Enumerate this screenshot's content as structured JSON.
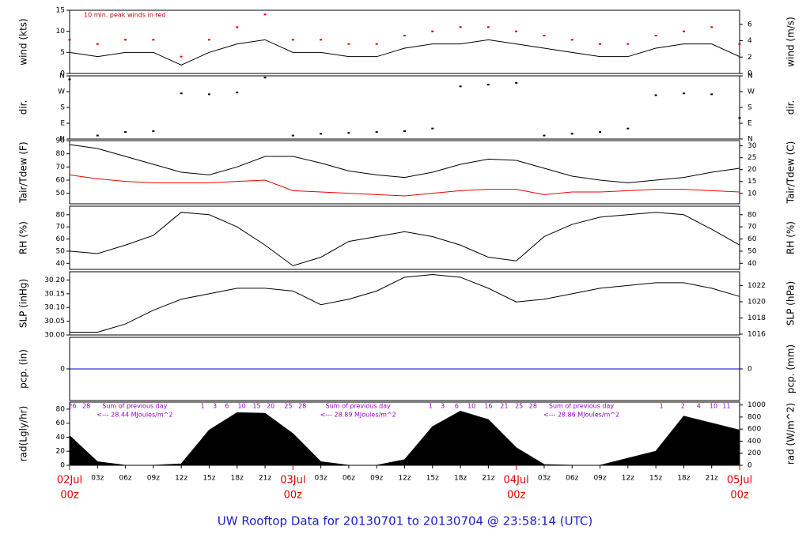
{
  "figure": {
    "title": "UW Rooftop Data for 20130701  to  20130704 @ 23:58:14  (UTC)",
    "x": [
      0,
      3,
      6,
      9,
      12,
      15,
      18,
      21,
      24,
      27,
      30,
      33,
      36,
      39,
      42,
      45,
      48,
      51,
      54,
      57,
      60,
      63,
      66,
      69,
      72
    ],
    "xlim": [
      0,
      72
    ],
    "xticks": [
      {
        "value": 3,
        "label": "03z"
      },
      {
        "value": 6,
        "label": "06z"
      },
      {
        "value": 9,
        "label": "09z"
      },
      {
        "value": 12,
        "label": "12z"
      },
      {
        "value": 15,
        "label": "15z"
      },
      {
        "value": 18,
        "label": "18z"
      },
      {
        "value": 21,
        "label": "21z"
      },
      {
        "value": 27,
        "label": "03z"
      },
      {
        "value": 30,
        "label": "06z"
      },
      {
        "value": 33,
        "label": "09z"
      },
      {
        "value": 36,
        "label": "12z"
      },
      {
        "value": 39,
        "label": "15z"
      },
      {
        "value": 42,
        "label": "18z"
      },
      {
        "value": 45,
        "label": "21z"
      },
      {
        "value": 51,
        "label": "03z"
      },
      {
        "value": 54,
        "label": "06z"
      },
      {
        "value": 57,
        "label": "09z"
      },
      {
        "value": 60,
        "label": "12z"
      },
      {
        "value": 63,
        "label": "15z"
      },
      {
        "value": 66,
        "label": "18z"
      },
      {
        "value": 69,
        "label": "21z"
      }
    ],
    "day_labels": [
      {
        "value": 0,
        "label": "02Jul",
        "sublabel": "00z"
      },
      {
        "value": 24,
        "label": "03Jul",
        "sublabel": "00z"
      },
      {
        "value": 48,
        "label": "04Jul",
        "sublabel": "00z"
      },
      {
        "value": 72,
        "label": "05Jul",
        "sublabel": "00z"
      }
    ]
  },
  "chart_data": [
    {
      "type": "line",
      "ylabel": "wind (kts)",
      "y2label": "wind (m/s)",
      "note": "10 min. peak winds in red",
      "ylim": [
        0,
        15
      ],
      "yticks": [
        0,
        5,
        10,
        15
      ],
      "y2lim": [
        0,
        7.72
      ],
      "y2ticks": [
        0,
        2,
        4,
        6
      ],
      "series": [
        {
          "type": "line",
          "color": "#000000",
          "values": [
            5,
            4,
            5,
            5,
            2,
            5,
            7,
            8,
            5,
            5,
            4,
            4,
            6,
            7,
            7,
            8,
            7,
            6,
            5,
            4,
            4,
            6,
            7,
            7,
            4
          ]
        },
        {
          "type": "scatter",
          "color": "#dd0000",
          "values": [
            8,
            7,
            8,
            8,
            4,
            8,
            11,
            14,
            8,
            8,
            7,
            7,
            9,
            10,
            11,
            11,
            10,
            9,
            8,
            7,
            7,
            9,
            10,
            11,
            7
          ]
        }
      ]
    },
    {
      "type": "scatter",
      "ylabel": "dir.",
      "ylim": [
        0,
        360
      ],
      "yticks": [
        {
          "value": 0,
          "label": "N"
        },
        {
          "value": 90,
          "label": "E"
        },
        {
          "value": 180,
          "label": "S"
        },
        {
          "value": 270,
          "label": "W"
        },
        {
          "value": 360,
          "label": "N"
        }
      ],
      "series": [
        {
          "type": "scatter",
          "color": "#000000",
          "values": [
            340,
            20,
            40,
            45,
            260,
            255,
            265,
            350,
            20,
            30,
            35,
            40,
            45,
            60,
            300,
            310,
            320,
            20,
            30,
            40,
            60,
            250,
            260,
            255,
            120
          ]
        }
      ]
    },
    {
      "type": "line",
      "ylabel": "Tair/Tdew (F)",
      "y2label": "Tair/Tdew (C)",
      "ylim": [
        42,
        90
      ],
      "yticks": [
        50,
        60,
        70,
        80,
        90
      ],
      "y2lim": [
        5.6,
        32.2
      ],
      "y2ticks": [
        10,
        15,
        20,
        25,
        30
      ],
      "series": [
        {
          "type": "line",
          "color": "#000000",
          "values": [
            87,
            84,
            78,
            72,
            66,
            64,
            70,
            78,
            78,
            73,
            67,
            64,
            62,
            66,
            72,
            76,
            75,
            69,
            63,
            60,
            58,
            60,
            62,
            66,
            69
          ]
        },
        {
          "type": "line",
          "color": "#ee0000",
          "values": [
            64,
            61,
            59,
            58,
            58,
            58,
            59,
            60,
            52,
            51,
            50,
            49,
            48,
            50,
            52,
            53,
            53,
            49,
            51,
            51,
            52,
            53,
            53,
            52,
            51
          ]
        }
      ]
    },
    {
      "type": "line",
      "ylabel": "RH (%)",
      "y2label": "RH (%)",
      "ylim": [
        35,
        87
      ],
      "yticks": [
        40,
        50,
        60,
        70,
        80
      ],
      "y2lim": [
        35,
        87
      ],
      "y2ticks": [
        40,
        50,
        60,
        70,
        80
      ],
      "series": [
        {
          "type": "line",
          "color": "#000000",
          "values": [
            50,
            48,
            55,
            63,
            82,
            80,
            70,
            55,
            38,
            45,
            58,
            62,
            66,
            62,
            55,
            45,
            42,
            62,
            72,
            78,
            80,
            82,
            80,
            68,
            55
          ]
        }
      ]
    },
    {
      "type": "line",
      "ylabel": "SLP (inHg)",
      "y2label": "SLP (hPa)",
      "ylim": [
        30.0,
        30.23
      ],
      "yticks": [
        {
          "value": 30.0,
          "label": "30.00"
        },
        30.05,
        {
          "value": 30.1,
          "label": "30.10"
        },
        30.15,
        {
          "value": 30.2,
          "label": "30.20"
        }
      ],
      "y2lim": [
        1015.9,
        1023.7
      ],
      "y2ticks": [
        1016,
        1018,
        1020,
        1022
      ],
      "series": [
        {
          "type": "line",
          "color": "#000000",
          "values": [
            30.01,
            30.01,
            30.04,
            30.09,
            30.13,
            30.15,
            30.17,
            30.17,
            30.16,
            30.11,
            30.13,
            30.16,
            30.21,
            30.22,
            30.21,
            30.17,
            30.12,
            30.13,
            30.15,
            30.17,
            30.18,
            30.19,
            30.19,
            30.17,
            30.14
          ]
        }
      ]
    },
    {
      "type": "line",
      "ylabel": "pcp. (in)",
      "y2label": "pcp. (mm)",
      "ylim": [
        -1,
        1
      ],
      "yticks": [
        0
      ],
      "y2lim": [
        -25.4,
        25.4
      ],
      "y2ticks": [
        0
      ],
      "series": [
        {
          "type": "line",
          "color": "#0000cc",
          "values": [
            0,
            0,
            0,
            0,
            0,
            0,
            0,
            0,
            0,
            0,
            0,
            0,
            0,
            0,
            0,
            0,
            0,
            0,
            0,
            0,
            0,
            0,
            0,
            0,
            0
          ]
        }
      ]
    },
    {
      "type": "area",
      "ylabel": "rad(Lgly/hr)",
      "y2label": "rad (W/m^2)",
      "ylim": [
        0,
        90
      ],
      "yticks": [
        0,
        20,
        40,
        60,
        80
      ],
      "y2lim": [
        0,
        1047
      ],
      "y2ticks": [
        0,
        200,
        400,
        600,
        800,
        1000
      ],
      "series": [
        {
          "type": "area",
          "color": "#000000",
          "values": [
            42,
            5,
            0,
            0,
            2,
            50,
            75,
            74,
            45,
            5,
            0,
            0,
            8,
            55,
            77,
            65,
            25,
            1,
            0,
            0,
            10,
            20,
            70,
            60,
            50
          ]
        }
      ],
      "sums": [
        {
          "x": 7,
          "label": "Sum of previous day",
          "sublabel": "<--- 28.44 MJoules/m^2"
        },
        {
          "x": 31,
          "label": "Sum of previous day",
          "sublabel": "<--- 28.89 MJoules/m^2"
        },
        {
          "x": 55,
          "label": "Sum of previous day",
          "sublabel": "<--- 28.86 MJoules/m^2"
        }
      ],
      "hour_marks": [
        {
          "x": 0.3,
          "value": 26
        },
        {
          "x": 1.8,
          "value": 28
        },
        {
          "x": 14.3,
          "value": 1
        },
        {
          "x": 15.6,
          "value": 3
        },
        {
          "x": 16.9,
          "value": 6
        },
        {
          "x": 18.5,
          "value": 10
        },
        {
          "x": 20.1,
          "value": 15
        },
        {
          "x": 21.6,
          "value": 20
        },
        {
          "x": 23.5,
          "value": 25
        },
        {
          "x": 25,
          "value": 28
        },
        {
          "x": 38.8,
          "value": 1
        },
        {
          "x": 40.1,
          "value": 3
        },
        {
          "x": 41.6,
          "value": 6
        },
        {
          "x": 43.2,
          "value": 10
        },
        {
          "x": 45,
          "value": 16
        },
        {
          "x": 46.7,
          "value": 21
        },
        {
          "x": 48.3,
          "value": 25
        },
        {
          "x": 49.8,
          "value": 28
        },
        {
          "x": 63.6,
          "value": 1
        },
        {
          "x": 65.9,
          "value": 2
        },
        {
          "x": 67.6,
          "value": 4
        },
        {
          "x": 69.2,
          "value": 10
        },
        {
          "x": 70.6,
          "value": 11
        }
      ]
    }
  ]
}
